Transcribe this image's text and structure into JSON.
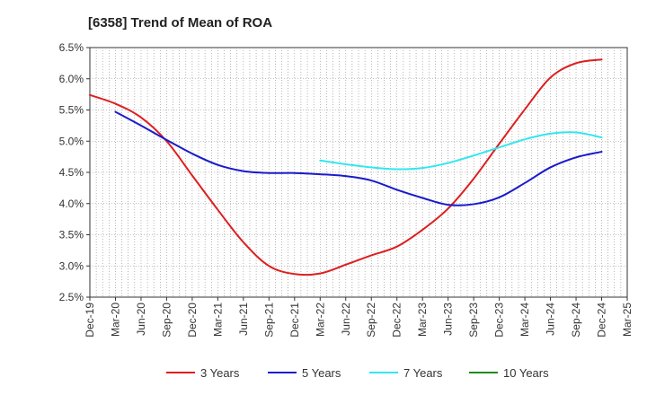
{
  "chart_data": {
    "type": "line",
    "title": "[6358]  Trend of Mean of ROA",
    "xlabel": "",
    "ylabel": "",
    "ylim": [
      2.5,
      6.5
    ],
    "grid": true,
    "legend_position": "bottom",
    "categories": [
      "Dec-19",
      "Mar-20",
      "Jun-20",
      "Sep-20",
      "Dec-20",
      "Mar-21",
      "Jun-21",
      "Sep-21",
      "Dec-21",
      "Mar-22",
      "Jun-22",
      "Sep-22",
      "Dec-22",
      "Mar-23",
      "Jun-23",
      "Sep-23",
      "Dec-23",
      "Mar-24",
      "Jun-24",
      "Sep-24",
      "Dec-24",
      "Mar-25"
    ],
    "y_ticks": [
      "2.5%",
      "3.0%",
      "3.5%",
      "4.0%",
      "4.5%",
      "5.0%",
      "5.5%",
      "6.0%",
      "6.5%"
    ],
    "y_tick_values": [
      2.5,
      3.0,
      3.5,
      4.0,
      4.5,
      5.0,
      5.5,
      6.0,
      6.5
    ],
    "series": [
      {
        "name": "3 Years",
        "color": "#dd1f1f",
        "values": [
          5.74,
          5.6,
          5.38,
          5.0,
          4.45,
          3.9,
          3.38,
          3.0,
          2.87,
          2.88,
          3.02,
          3.17,
          3.31,
          3.58,
          3.92,
          4.4,
          4.96,
          5.51,
          6.02,
          6.25,
          6.31,
          null
        ]
      },
      {
        "name": "5 Years",
        "color": "#1a1acc",
        "values": [
          null,
          5.47,
          5.25,
          5.02,
          4.8,
          4.62,
          4.52,
          4.49,
          4.49,
          4.47,
          4.44,
          4.37,
          4.22,
          4.09,
          3.98,
          3.99,
          4.1,
          4.33,
          4.58,
          4.74,
          4.83,
          null
        ]
      },
      {
        "name": "7 Years",
        "color": "#33e6ee",
        "values": [
          null,
          null,
          null,
          null,
          null,
          null,
          null,
          null,
          null,
          4.69,
          4.63,
          4.58,
          4.55,
          4.57,
          4.65,
          4.77,
          4.9,
          5.03,
          5.12,
          5.14,
          5.06,
          null
        ]
      },
      {
        "name": "10 Years",
        "color": "#1f8a1f",
        "values": [
          null,
          null,
          null,
          null,
          null,
          null,
          null,
          null,
          null,
          null,
          null,
          null,
          null,
          null,
          null,
          null,
          null,
          null,
          null,
          null,
          null,
          null
        ]
      }
    ]
  }
}
